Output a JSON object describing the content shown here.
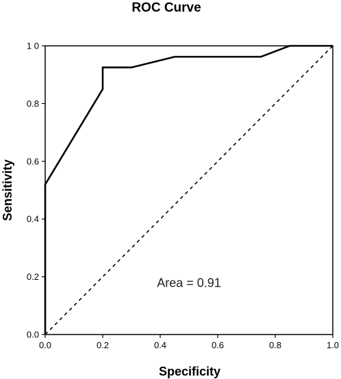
{
  "chart_data": {
    "type": "line",
    "title": "ROC Curve",
    "xlabel": "Specificity",
    "ylabel": "Sensitivity",
    "xlim": [
      0.0,
      1.0
    ],
    "ylim": [
      0.0,
      1.0
    ],
    "xticks": [
      "0.0",
      "0.2",
      "0.4",
      "0.6",
      "0.8",
      "1.0"
    ],
    "yticks": [
      "0.0",
      "0.2",
      "0.4",
      "0.6",
      "0.8",
      "1 0"
    ],
    "xtick_values": [
      0.0,
      0.2,
      0.4,
      0.6,
      0.8,
      1.0
    ],
    "ytick_values": [
      0.0,
      0.2,
      0.4,
      0.6,
      0.8,
      1.0
    ],
    "grid": false,
    "series": [
      {
        "style": "solid",
        "color": "#000000",
        "x": [
          0.0,
          0.0,
          0.2,
          0.2,
          0.3,
          0.45,
          0.75,
          0.85,
          1.0
        ],
        "y": [
          0.0,
          0.52,
          0.85,
          0.925,
          0.925,
          0.962,
          0.962,
          1.0,
          1.0
        ]
      },
      {
        "style": "dashed",
        "color": "#000000",
        "x": [
          0.0,
          1.0
        ],
        "y": [
          0.0,
          1.0
        ]
      }
    ],
    "annotations": [
      {
        "text": "Area = 0.91",
        "x": 0.5,
        "y": 0.165
      }
    ]
  }
}
